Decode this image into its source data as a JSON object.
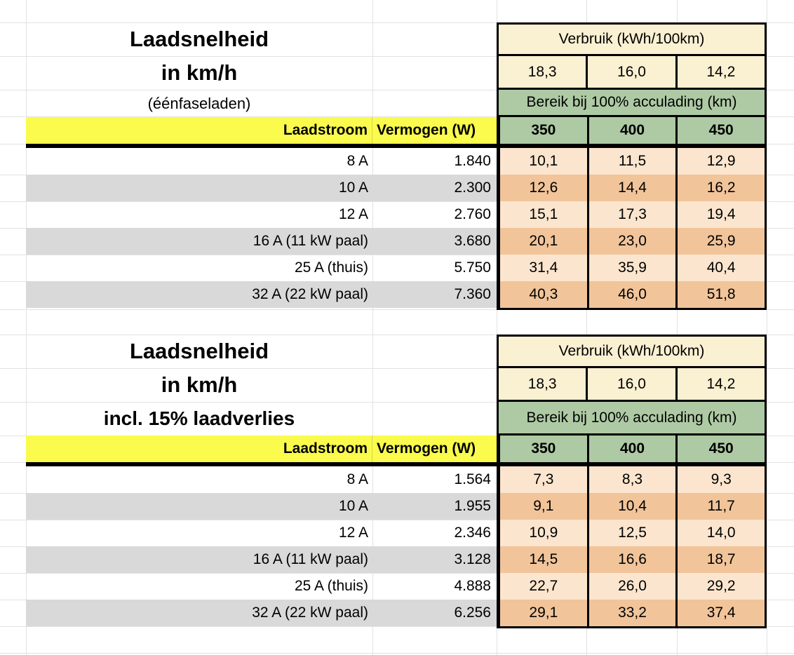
{
  "colors": {
    "header_yellow": "#fbfb4d",
    "header_cream": "#faf0d2",
    "header_green": "#aecaa4",
    "cell_orange_light": "#fbe5ce",
    "cell_orange_dark": "#f1c49a",
    "row_stripe_gray": "#d9d9d9",
    "grid_line": "#e2e2e2",
    "table_border": "#000000"
  },
  "tables": [
    {
      "title_lines": [
        "Laadsnelheid",
        "in km/h",
        "(éénfaseladen)"
      ],
      "header": {
        "verbruik_label": "Verbruik (kWh/100km)",
        "verbruik_values": [
          "18,3",
          "16,0",
          "14,2"
        ],
        "bereik_label": "Bereik bij 100% acculading (km)",
        "range_values": [
          "350",
          "400",
          "450"
        ],
        "laadstroom_label": "Laadstroom",
        "vermogen_label": "Vermogen (W)"
      },
      "rows": [
        {
          "laadstroom": "8 A",
          "vermogen": "1.840",
          "values": [
            "10,1",
            "11,5",
            "12,9"
          ]
        },
        {
          "laadstroom": "10 A",
          "vermogen": "2.300",
          "values": [
            "12,6",
            "14,4",
            "16,2"
          ]
        },
        {
          "laadstroom": "12 A",
          "vermogen": "2.760",
          "values": [
            "15,1",
            "17,3",
            "19,4"
          ]
        },
        {
          "laadstroom": "16 A (11 kW paal)",
          "vermogen": "3.680",
          "values": [
            "20,1",
            "23,0",
            "25,9"
          ]
        },
        {
          "laadstroom": "25 A (thuis)",
          "vermogen": "5.750",
          "values": [
            "31,4",
            "35,9",
            "40,4"
          ]
        },
        {
          "laadstroom": "32 A (22 kW paal)",
          "vermogen": "7.360",
          "values": [
            "40,3",
            "46,0",
            "51,8"
          ]
        }
      ]
    },
    {
      "title_lines": [
        "Laadsnelheid",
        "in km/h",
        "incl. 15% laadverlies"
      ],
      "header": {
        "verbruik_label": "Verbruik (kWh/100km)",
        "verbruik_values": [
          "18,3",
          "16,0",
          "14,2"
        ],
        "bereik_label": "Bereik bij 100% acculading (km)",
        "range_values": [
          "350",
          "400",
          "450"
        ],
        "laadstroom_label": "Laadstroom",
        "vermogen_label": "Vermogen (W)"
      },
      "rows": [
        {
          "laadstroom": "8 A",
          "vermogen": "1.564",
          "values": [
            "7,3",
            "8,3",
            "9,3"
          ]
        },
        {
          "laadstroom": "10 A",
          "vermogen": "1.955",
          "values": [
            "9,1",
            "10,4",
            "11,7"
          ]
        },
        {
          "laadstroom": "12 A",
          "vermogen": "2.346",
          "values": [
            "10,9",
            "12,5",
            "14,0"
          ]
        },
        {
          "laadstroom": "16 A (11 kW paal)",
          "vermogen": "3.128",
          "values": [
            "14,5",
            "16,6",
            "18,7"
          ]
        },
        {
          "laadstroom": "25 A (thuis)",
          "vermogen": "4.888",
          "values": [
            "22,7",
            "26,0",
            "29,2"
          ]
        },
        {
          "laadstroom": "32 A (22 kW paal)",
          "vermogen": "6.256",
          "values": [
            "29,1",
            "33,2",
            "37,4"
          ]
        }
      ]
    }
  ]
}
